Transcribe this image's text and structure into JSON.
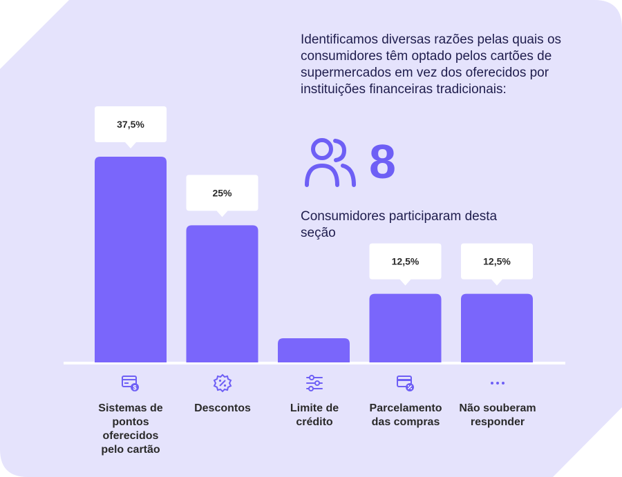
{
  "intro_text": "Identificamos diversas razões pelas quais os consumidores têm optado pelos cartões de supermercados em vez dos oferecidos por instituições financeiras tradicionais:",
  "stat": {
    "number": "8",
    "caption": "Consumidores participaram desta seção",
    "icon": "users-icon"
  },
  "colors": {
    "background": "#e5e3fc",
    "bar": "#7a66fb",
    "accent": "#6e5ff5",
    "text": "#1f1d4d",
    "tooltip": "#ffffff"
  },
  "chart_data": {
    "type": "bar",
    "categories": [
      "Sistemas de pontos oferecidos pelo cartão",
      "Descontos",
      "Limite de crédito",
      "Parcelamento das compras",
      "Não souberam responder"
    ],
    "values": [
      37.5,
      25,
      0,
      12.5,
      12.5
    ],
    "data_labels": [
      "37,5%",
      "25%",
      "",
      "12,5%",
      "12,5%"
    ],
    "unit": "%",
    "ylim": [
      0,
      37.5
    ],
    "grid": false,
    "category_icons": [
      "points-card-icon",
      "discount-badge-icon",
      "sliders-icon",
      "installment-card-icon",
      "more-dots-icon"
    ]
  },
  "category_label_lines": [
    [
      "Sistemas de",
      "pontos",
      "oferecidos",
      "pelo cartão"
    ],
    [
      "Descontos"
    ],
    [
      "Limite de",
      "crédito"
    ],
    [
      "Parcelamento",
      "das compras"
    ],
    [
      "Não souberam",
      "responder"
    ]
  ]
}
